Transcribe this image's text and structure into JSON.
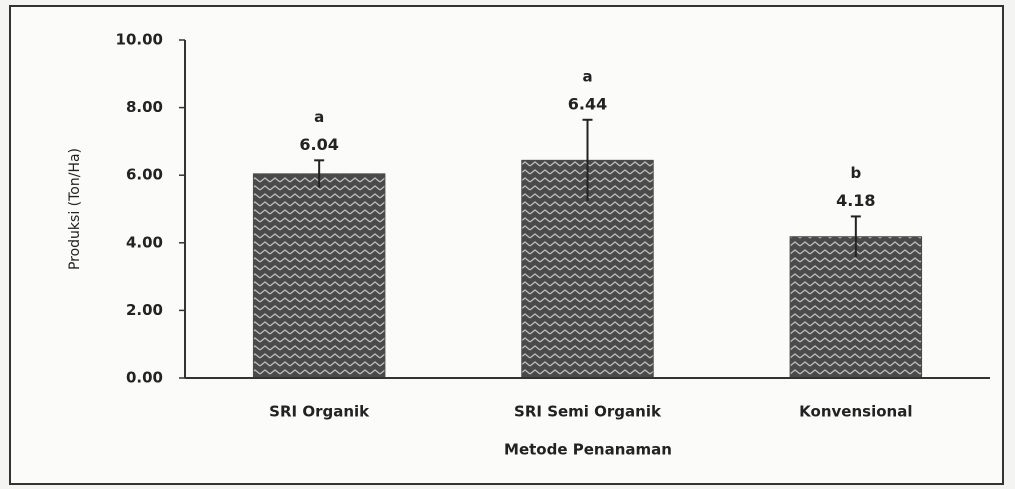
{
  "chart_data": {
    "type": "bar",
    "y_label": "Produksi (Ton/Ha)",
    "x_label": "Metode Penanaman",
    "categories": [
      "SRI Organik",
      "SRI Semi Organik",
      "Konvensional"
    ],
    "values": [
      6.04,
      6.44,
      4.18
    ],
    "errors": [
      0.4,
      1.2,
      0.6
    ],
    "letters": [
      "a",
      "a",
      "b"
    ],
    "color": "#4a4a4a",
    "ylim": [
      0,
      10
    ],
    "yticks": [
      {
        "value": 0,
        "label": "0.00"
      },
      {
        "value": 2,
        "label": "2.00"
      },
      {
        "value": 4,
        "label": "4.00"
      },
      {
        "value": 6,
        "label": "6.00"
      },
      {
        "value": 8,
        "label": "8.00"
      },
      {
        "value": 10,
        "label": "10.00"
      }
    ],
    "grid": false
  }
}
